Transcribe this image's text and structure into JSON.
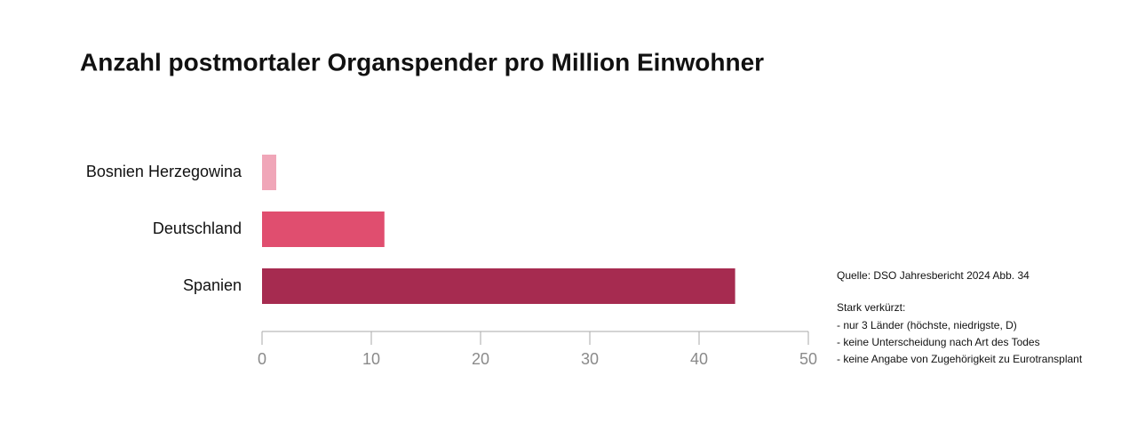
{
  "chart_data": {
    "type": "bar",
    "orientation": "horizontal",
    "title": "Anzahl postmortaler Organspender pro Million Einwohner",
    "categories": [
      "Bosnien Herzegowina",
      "Deutschland",
      "Spanien"
    ],
    "values": [
      1.3,
      11.2,
      43.3
    ],
    "colors": [
      "#f0a6b8",
      "#e04e6f",
      "#a62b50"
    ],
    "xlim": [
      0,
      50
    ],
    "xticks": [
      0,
      10,
      20,
      30,
      40,
      50
    ],
    "annotations": [
      "Quelle: DSO Jahresbericht 2024 Abb. 34",
      "Stark verkürzt:",
      "- nur 3 Länder (höchste, niedrigste, D)",
      "- keine Unterscheidung nach Art des Todes",
      "- keine Angabe von Zugehörigkeit zu Eurotransplant"
    ]
  }
}
